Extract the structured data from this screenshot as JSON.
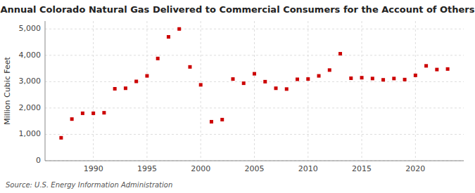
{
  "chart_data": {
    "type": "scatter",
    "title": "Annual Colorado Natural Gas Delivered to Commercial Consumers for the Account of Others",
    "ylabel": "Million Cubic Feet",
    "annotations": [
      "Source: U.S. Energy Information Administration"
    ],
    "x": [
      1987,
      1988,
      1989,
      1990,
      1991,
      1992,
      1993,
      1994,
      1995,
      1996,
      1997,
      1998,
      1999,
      2000,
      2001,
      2002,
      2003,
      2004,
      2005,
      2006,
      2007,
      2008,
      2009,
      2010,
      2011,
      2012,
      2013,
      2014,
      2015,
      2016,
      2017,
      2018,
      2019,
      2020,
      2021,
      2022,
      2023
    ],
    "values": [
      870,
      1580,
      1800,
      1800,
      1820,
      2730,
      2750,
      3010,
      3220,
      3880,
      4700,
      5000,
      3560,
      2880,
      1480,
      1560,
      3100,
      2940,
      3300,
      3000,
      2750,
      2720,
      3090,
      3100,
      3220,
      3440,
      4060,
      3130,
      3150,
      3120,
      3070,
      3120,
      3080,
      3240,
      3600,
      3460,
      3480
    ],
    "color": "#cc0000",
    "marker": "square",
    "xlim": [
      1985.5,
      2024.5
    ],
    "ylim": [
      0,
      5300
    ],
    "xticks": [
      1990,
      1995,
      2000,
      2005,
      2010,
      2015,
      2020
    ],
    "yticks": [
      0,
      {
        "value": 1000,
        "label": "1,000"
      },
      {
        "value": 2000,
        "label": "2,000"
      },
      {
        "value": 3000,
        "label": "3,000"
      },
      {
        "value": 4000,
        "label": "4,000"
      },
      {
        "value": 5000,
        "label": "5,000"
      }
    ],
    "grid": true
  }
}
